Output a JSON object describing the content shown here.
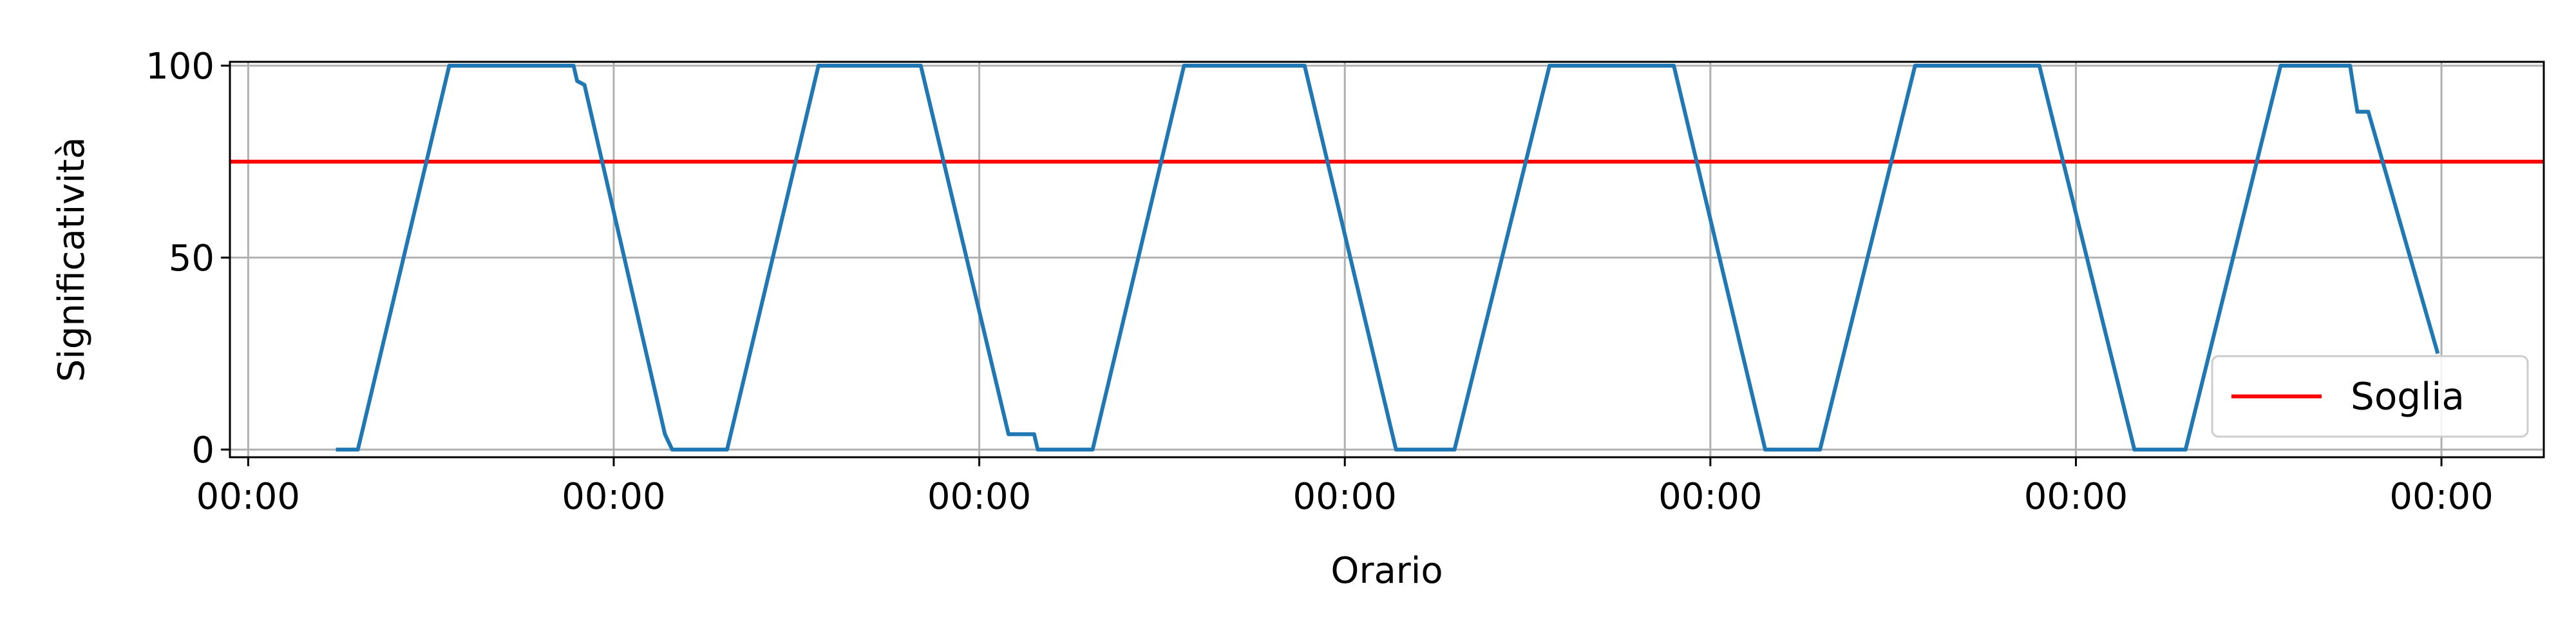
{
  "chart_data": {
    "type": "line",
    "title": "",
    "xlabel": "Orario",
    "ylabel": "Significatività",
    "xlim": [
      -0.05,
      6.28
    ],
    "ylim": [
      -2,
      101
    ],
    "x_ticks": [
      {
        "value": 0,
        "label": "00:00"
      },
      {
        "value": 1,
        "label": "00:00"
      },
      {
        "value": 2,
        "label": "00:00"
      },
      {
        "value": 3,
        "label": "00:00"
      },
      {
        "value": 4,
        "label": "00:00"
      },
      {
        "value": 5,
        "label": "00:00"
      },
      {
        "value": 6,
        "label": "00:00"
      }
    ],
    "y_ticks": [
      0,
      50,
      100
    ],
    "grid": true,
    "legend": {
      "placement": "lower-right",
      "entries": [
        "Soglia"
      ]
    },
    "threshold": {
      "name": "Soglia",
      "y": 75,
      "color": "#ff0000"
    },
    "series": [
      {
        "color": "#1f77b4",
        "x": [
          0.24,
          0.3,
          0.55,
          0.89,
          0.9,
          0.92,
          1.14,
          1.15,
          1.16,
          1.31,
          1.56,
          1.84,
          2.08,
          2.15,
          2.16,
          2.31,
          2.56,
          2.89,
          3.14,
          3.3,
          3.56,
          3.9,
          4.15,
          4.3,
          4.56,
          4.9,
          5.16,
          5.3,
          5.56,
          5.75,
          5.77,
          5.8,
          5.99
        ],
        "y": [
          0,
          0,
          100,
          100,
          96,
          95,
          4,
          2,
          0,
          0,
          100,
          100,
          4,
          4,
          0,
          0,
          100,
          100,
          0,
          0,
          100,
          100,
          0,
          0,
          100,
          100,
          0,
          0,
          100,
          100,
          88,
          88,
          25
        ]
      }
    ]
  }
}
